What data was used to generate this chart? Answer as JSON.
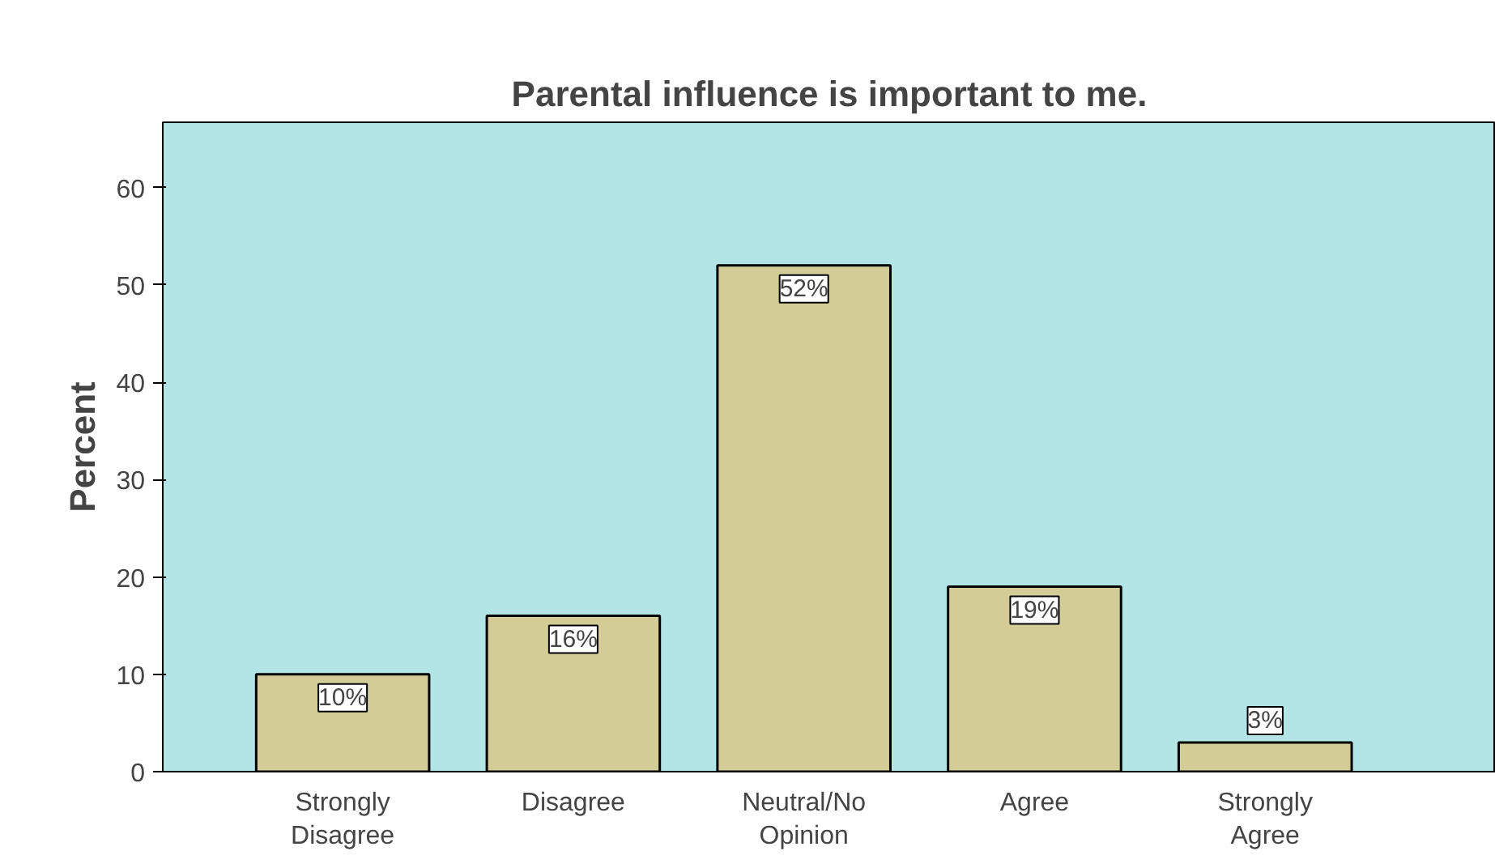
{
  "chart_data": {
    "type": "bar",
    "title": "Parental influence is important to me.",
    "ylabel": "Percent",
    "categories": [
      "Strongly Disagree",
      "Disagree",
      "Neutral/No Opinion",
      "Agree",
      "Strongly Agree"
    ],
    "values": [
      10,
      16,
      52,
      19,
      3
    ],
    "value_labels": [
      "10%",
      "16%",
      "52%",
      "19%",
      "3%"
    ],
    "color": "#d4cc96",
    "ylim": [
      0,
      66.7
    ],
    "yticks": [
      0,
      10,
      20,
      30,
      40,
      50,
      60
    ],
    "grid": false
  }
}
